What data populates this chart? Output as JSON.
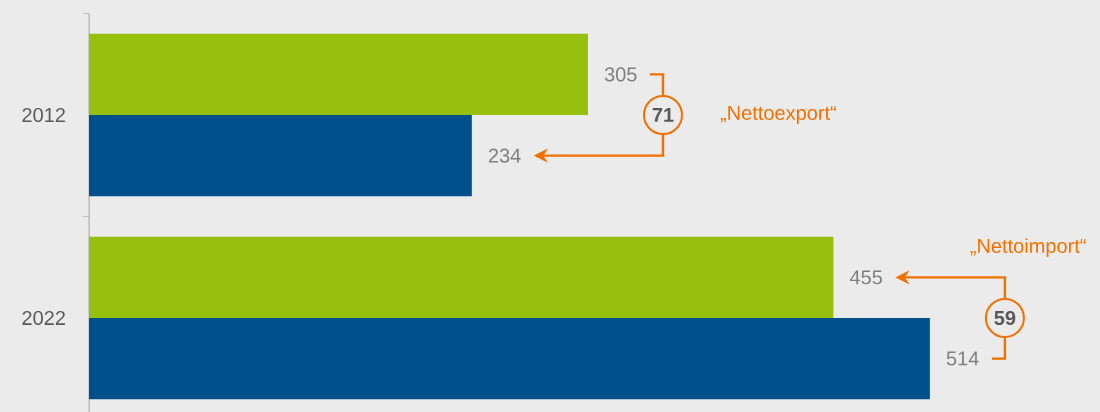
{
  "chart_data": {
    "type": "bar",
    "orientation": "horizontal",
    "categories": [
      "2012",
      "2022"
    ],
    "series": [
      {
        "color": "#97bf0d",
        "values": [
          305,
          455
        ]
      },
      {
        "color": "#00508c",
        "values": [
          234,
          514
        ]
      }
    ],
    "data_labels": true,
    "annotations": [
      "71",
      "„Nettoexport“",
      "59",
      "„Nettoimport“"
    ]
  }
}
